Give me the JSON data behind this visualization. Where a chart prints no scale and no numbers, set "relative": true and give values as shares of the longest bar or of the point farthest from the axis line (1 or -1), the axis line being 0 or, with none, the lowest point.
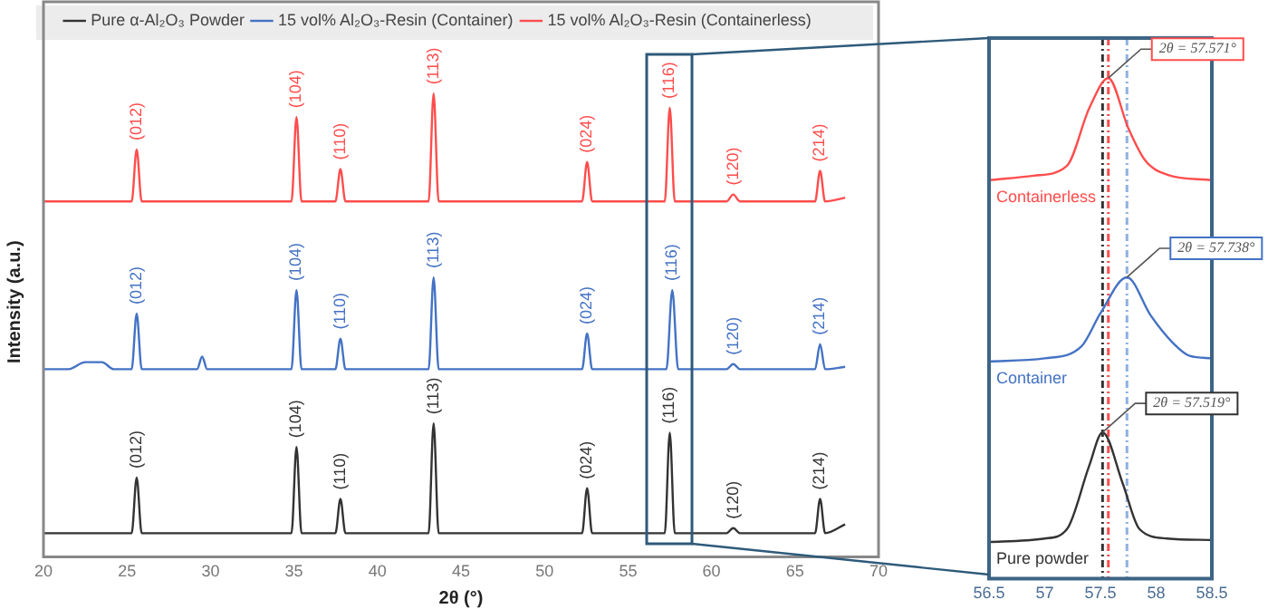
{
  "chart_data": [
    {
      "type": "line",
      "xlabel": "2θ (°)",
      "ylabel": "Intensity (a.u.)",
      "relative": true,
      "xlim": [
        20,
        70
      ],
      "xticks": [
        20,
        25,
        30,
        35,
        40,
        45,
        50,
        55,
        60,
        65,
        70
      ],
      "grid": false,
      "legend": "top",
      "series": [
        {
          "name": "Pure α-Al₂O₃ Powder",
          "color": "#333333",
          "x": [
            20,
            25.28,
            25.58,
            25.88,
            34.85,
            35.15,
            35.45,
            37.48,
            37.78,
            38.08,
            43.06,
            43.36,
            43.66,
            52.25,
            52.55,
            52.85,
            57.2,
            57.5,
            57.8,
            60.9,
            61.3,
            61.7,
            66.2,
            66.5,
            66.8,
            68
          ],
          "values": [
            0.051,
            0.051,
            0.171,
            0.051,
            0.051,
            0.237,
            0.051,
            0.051,
            0.125,
            0.051,
            0.051,
            0.288,
            0.051,
            0.051,
            0.148,
            0.051,
            0.051,
            0.268,
            0.051,
            0.051,
            0.062,
            0.051,
            0.051,
            0.125,
            0.051,
            0.07
          ]
        },
        {
          "name": "15 vol% Al₂O₃-Resin (Container)",
          "color": "#4472c4",
          "x": [
            20,
            21.5,
            22.5,
            23.5,
            24.2,
            25.28,
            25.58,
            25.88,
            29.2,
            29.5,
            29.8,
            34.85,
            35.15,
            35.45,
            37.48,
            37.78,
            38.08,
            43.06,
            43.36,
            43.66,
            52.25,
            52.55,
            52.85,
            57.3,
            57.65,
            58.0,
            60.9,
            61.3,
            61.7,
            66.2,
            66.5,
            66.8,
            68
          ],
          "values": [
            0.405,
            0.405,
            0.42,
            0.42,
            0.405,
            0.405,
            0.525,
            0.405,
            0.405,
            0.432,
            0.405,
            0.405,
            0.576,
            0.405,
            0.405,
            0.471,
            0.405,
            0.405,
            0.603,
            0.405,
            0.405,
            0.482,
            0.405,
            0.405,
            0.576,
            0.405,
            0.405,
            0.416,
            0.405,
            0.405,
            0.459,
            0.405,
            0.41
          ]
        },
        {
          "name": "15 vol% Al₂O₃-Resin (Containerless)",
          "color": "#ff4d4d",
          "x": [
            20,
            25.28,
            25.58,
            25.88,
            34.85,
            35.15,
            35.45,
            37.48,
            37.78,
            38.08,
            43.06,
            43.36,
            43.66,
            52.25,
            52.55,
            52.85,
            57.2,
            57.5,
            57.8,
            60.9,
            61.3,
            61.7,
            66.2,
            66.5,
            66.8,
            68
          ],
          "values": [
            0.767,
            0.767,
            0.879,
            0.767,
            0.767,
            0.949,
            0.767,
            0.767,
            0.837,
            0.767,
            0.767,
            1,
            0.767,
            0.767,
            0.852,
            0.767,
            0.767,
            0.969,
            0.767,
            0.767,
            0.782,
            0.767,
            0.767,
            0.833,
            0.767,
            0.775
          ]
        }
      ],
      "annotations": [
        {
          "text": "(012)",
          "x": 25.58,
          "y": 0.171
        },
        {
          "text": "(104)",
          "x": 35.15,
          "y": 0.237
        },
        {
          "text": "(110)",
          "x": 37.78,
          "y": 0.125
        },
        {
          "text": "(113)",
          "x": 43.36,
          "y": 0.288
        },
        {
          "text": "(024)",
          "x": 52.55,
          "y": 0.148
        },
        {
          "text": "(116)",
          "x": 57.5,
          "y": 0.268
        },
        {
          "text": "(120)",
          "x": 61.3,
          "y": 0.062
        },
        {
          "text": "(214)",
          "x": 66.5,
          "y": 0.125
        },
        {
          "text": "(012)",
          "x": 25.58,
          "y": 0.525
        },
        {
          "text": "(104)",
          "x": 35.15,
          "y": 0.576
        },
        {
          "text": "(110)",
          "x": 37.78,
          "y": 0.471
        },
        {
          "text": "(113)",
          "x": 43.36,
          "y": 0.603
        },
        {
          "text": "(024)",
          "x": 52.55,
          "y": 0.482
        },
        {
          "text": "(116)",
          "x": 57.65,
          "y": 0.576
        },
        {
          "text": "(120)",
          "x": 61.3,
          "y": 0.416
        },
        {
          "text": "(214)",
          "x": 66.5,
          "y": 0.459
        },
        {
          "text": "(012)",
          "x": 25.58,
          "y": 0.879
        },
        {
          "text": "(104)",
          "x": 35.15,
          "y": 0.949
        },
        {
          "text": "(110)",
          "x": 37.78,
          "y": 0.837
        },
        {
          "text": "(113)",
          "x": 43.36,
          "y": 1
        },
        {
          "text": "(024)",
          "x": 52.55,
          "y": 0.852
        },
        {
          "text": "(116)",
          "x": 57.5,
          "y": 0.969
        },
        {
          "text": "(120)",
          "x": 61.3,
          "y": 0.782
        },
        {
          "text": "(214)",
          "x": 66.5,
          "y": 0.833
        }
      ]
    },
    {
      "type": "line",
      "relative": true,
      "xlim": [
        56.5,
        58.5
      ],
      "xticks": [
        56.5,
        57,
        57.5,
        58,
        58.5
      ],
      "grid": false,
      "series": [
        {
          "name": "Containerless",
          "color": "#ff4d4d",
          "x": [
            56.5,
            56.9,
            57.2,
            57.4,
            57.571,
            57.75,
            57.9,
            58.1,
            58.5
          ],
          "values": [
            0.796,
            0.805,
            0.825,
            0.94,
            1,
            0.9,
            0.836,
            0.807,
            0.796
          ]
        },
        {
          "name": "Container",
          "color": "#4472c4",
          "x": [
            56.5,
            57.0,
            57.33,
            57.5,
            57.738,
            57.95,
            58.15,
            58.3,
            58.5
          ],
          "values": [
            0.434,
            0.44,
            0.464,
            0.53,
            0.602,
            0.526,
            0.471,
            0.445,
            0.44
          ]
        },
        {
          "name": "Pure powder",
          "color": "#333333",
          "x": [
            56.5,
            57.0,
            57.2,
            57.4,
            57.519,
            57.7,
            57.85,
            58.1,
            58.5
          ],
          "values": [
            0.073,
            0.08,
            0.099,
            0.226,
            0.292,
            0.19,
            0.099,
            0.08,
            0.077
          ]
        }
      ],
      "ref_lines": [
        {
          "axis": "x",
          "value": 57.519,
          "color": "#333333",
          "line_style": "dashed"
        },
        {
          "axis": "x",
          "value": 57.571,
          "color": "#ff4d4d",
          "line_style": "dashed"
        },
        {
          "axis": "x",
          "value": 57.738,
          "color": "#8fb0e0",
          "line_style": "dashed"
        }
      ],
      "annotations": [
        {
          "text": "2θ = 57.571°",
          "x": 57.571,
          "y": 1
        },
        {
          "text": "2θ = 57.738°",
          "x": 57.738,
          "y": 0.602
        },
        {
          "text": "2θ = 57.519°",
          "x": 57.519,
          "y": 0.292
        }
      ]
    }
  ]
}
